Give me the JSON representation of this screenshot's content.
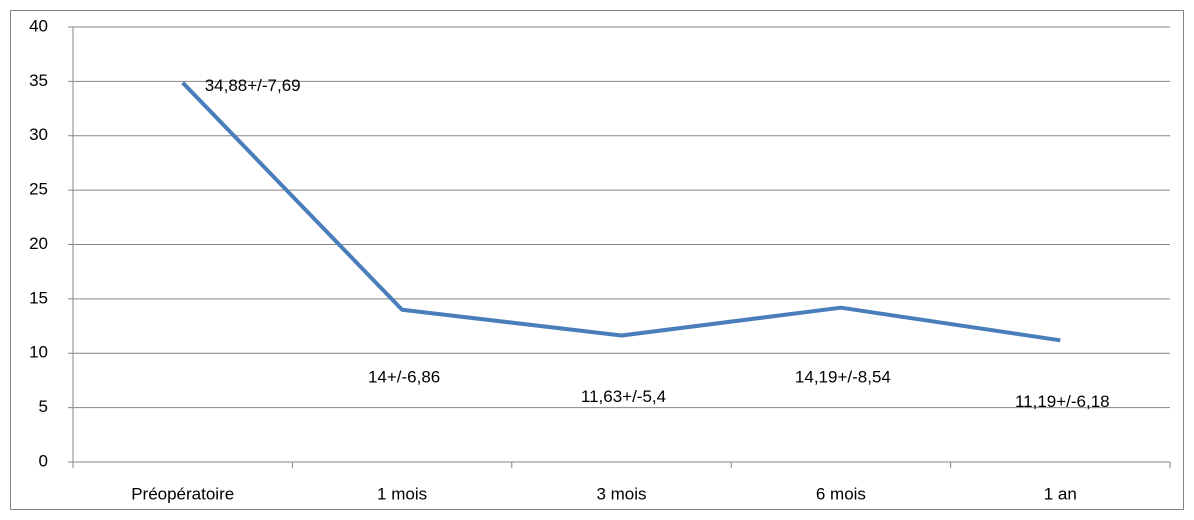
{
  "chart_data": {
    "type": "line",
    "categories": [
      "Préopératoire",
      "1 mois",
      "3 mois",
      "6 mois",
      "1 an"
    ],
    "values": [
      34.88,
      14,
      11.63,
      14.19,
      11.19
    ],
    "value_labels": [
      "34,88+/-7,69",
      "14+/-6,86",
      "11,63+/-5,4",
      "14,19+/-8,54",
      "11,19+/-6,18"
    ],
    "color": "#4a7ebb",
    "ylim": [
      0,
      40
    ],
    "yticks": [
      0,
      5,
      10,
      15,
      20,
      25,
      30,
      35,
      40
    ],
    "grid": true
  }
}
